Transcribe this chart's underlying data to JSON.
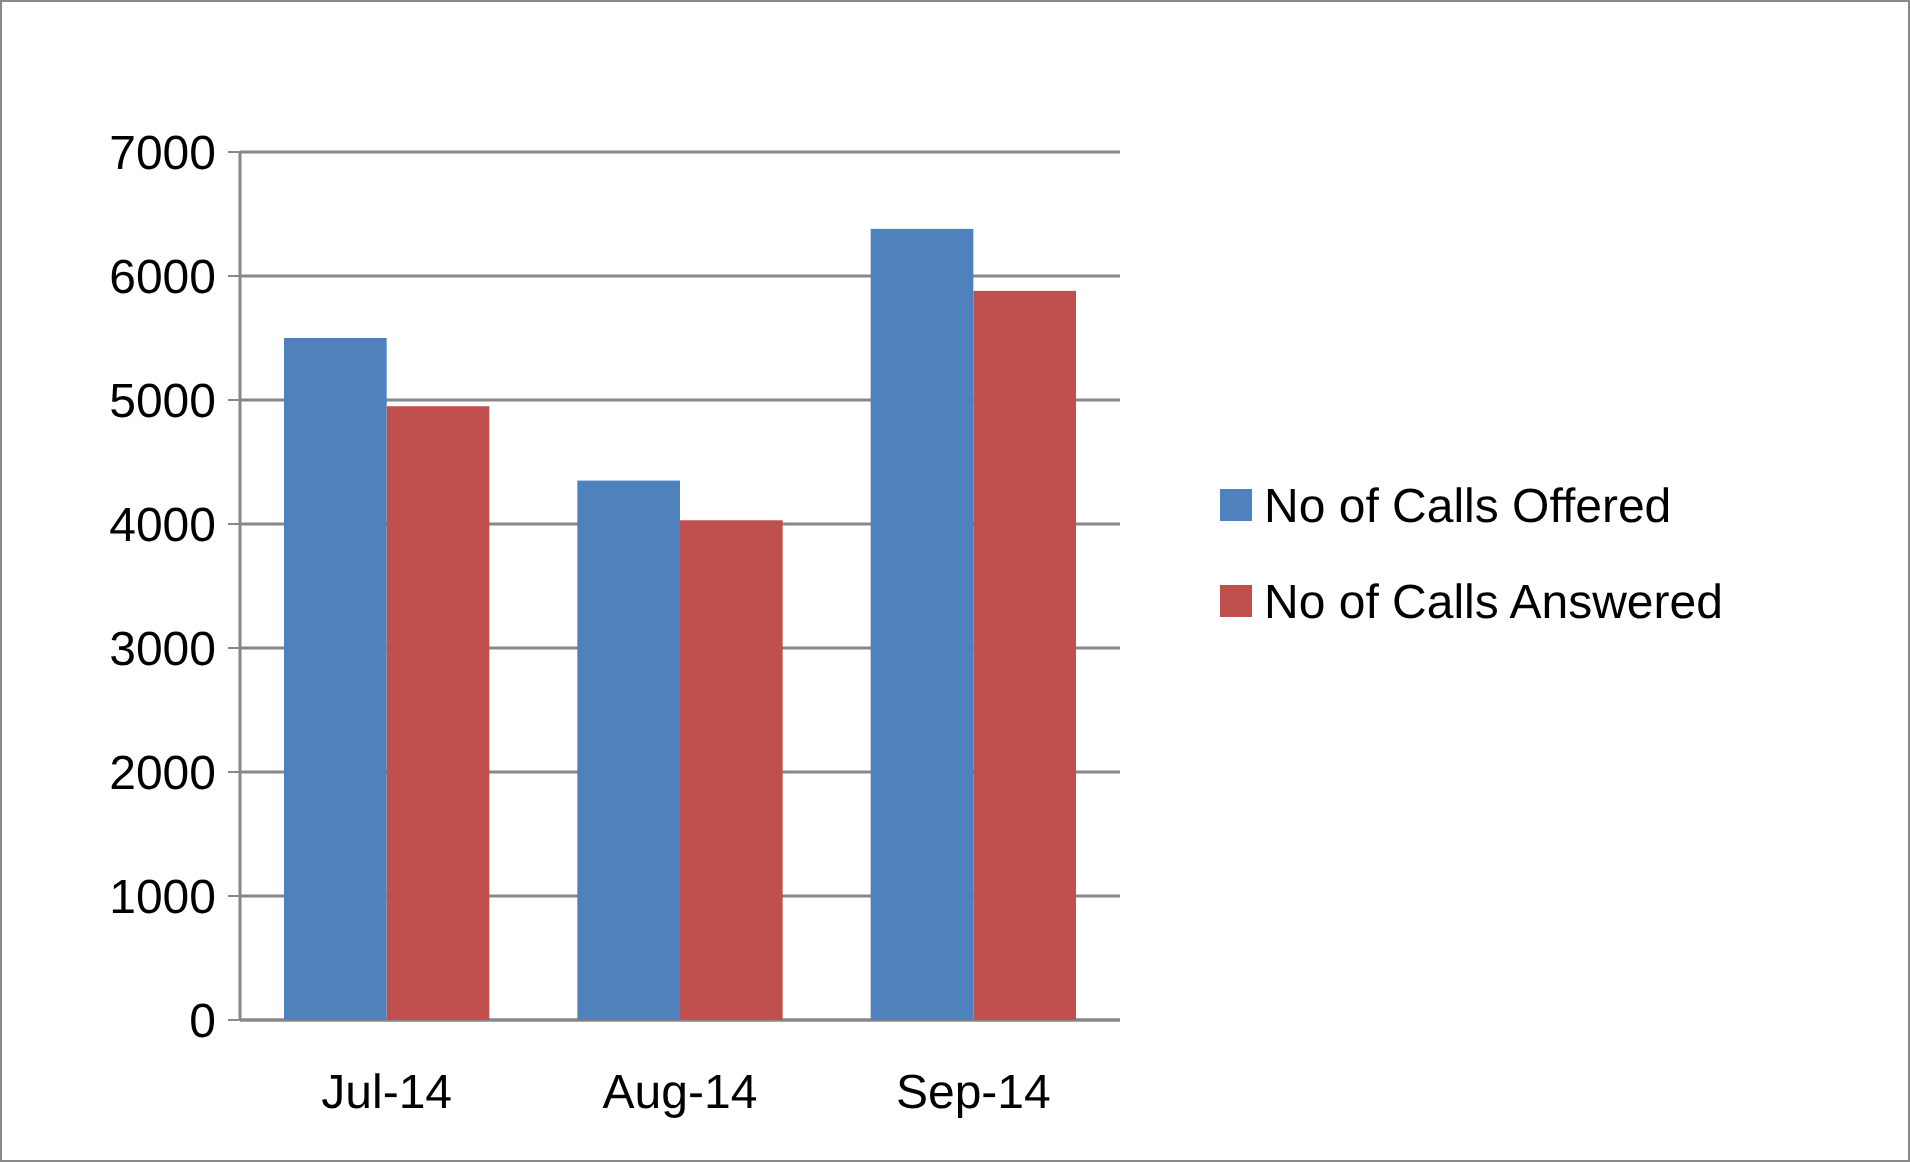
{
  "chart_data": {
    "type": "bar",
    "categories": [
      "Jul-14",
      "Aug-14",
      "Sep-14"
    ],
    "series": [
      {
        "name": "No of Calls Offered",
        "color": "#4f81bd",
        "values": [
          5500,
          4350,
          6380
        ]
      },
      {
        "name": "No of Calls Answered",
        "color": "#c0504d",
        "values": [
          4950,
          4030,
          5880
        ]
      }
    ],
    "ylim": [
      0,
      7000
    ],
    "yticks": [
      0,
      1000,
      2000,
      3000,
      4000,
      5000,
      6000,
      7000
    ],
    "grid": "y",
    "legend": "right"
  }
}
